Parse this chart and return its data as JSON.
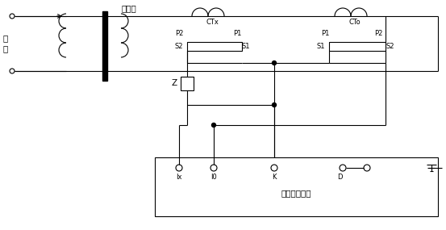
{
  "fig_width": 5.53,
  "fig_height": 2.85,
  "dpi": 100,
  "bg_color": "#ffffff",
  "line_color": "#000000",
  "line_width": 0.8,
  "text_color": "#000000",
  "font_size": 7.5,
  "small_font": 6,
  "title_shengliuqi": "升流器",
  "title_ctx": "CTx",
  "title_cto": "CTo",
  "title_hgj": "互感器校验仪",
  "dianyuan": "电\n源",
  "label_P2_left": "P2",
  "label_S2_left": "S2",
  "label_P1_ctx": "P1",
  "label_S1_ctx": "S1",
  "label_P1_cto": "P1",
  "label_S1_cto": "S1",
  "label_P2_right": "P2",
  "label_S2_right": "S2",
  "label_Z": "Z",
  "label_Ix": "Ix",
  "label_I0": "I0",
  "label_K": "K",
  "label_D": "D",
  "label_dian": "电\n源"
}
